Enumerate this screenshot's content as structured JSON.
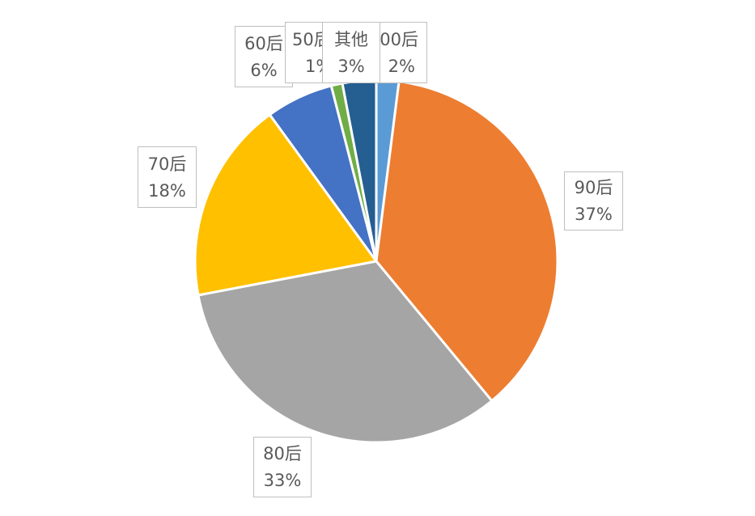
{
  "chart_data": {
    "type": "pie",
    "title": "",
    "start": "top",
    "direction": "clockwise",
    "slices": [
      {
        "label": "00后",
        "value": 2,
        "display": "2%",
        "color": "#5B9BD5"
      },
      {
        "label": "90后",
        "value": 37,
        "display": "37%",
        "color": "#ED7D31"
      },
      {
        "label": "80后",
        "value": 33,
        "display": "33%",
        "color": "#A5A5A5"
      },
      {
        "label": "70后",
        "value": 18,
        "display": "18%",
        "color": "#FFC000"
      },
      {
        "label": "60后",
        "value": 6,
        "display": "6%",
        "color": "#4472C4"
      },
      {
        "label": "50后",
        "value": 1,
        "display": "1%",
        "color": "#70AD47"
      },
      {
        "label": "其他",
        "value": 3,
        "display": "3%",
        "color": "#255E91"
      }
    ]
  }
}
